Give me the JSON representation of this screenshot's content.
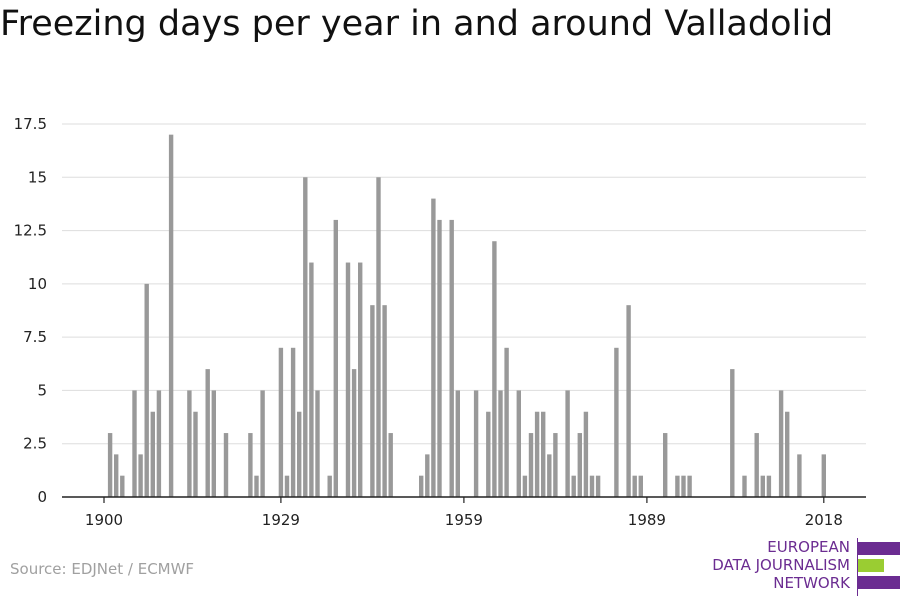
{
  "title": "Freezing days per year in and around Valladolid",
  "source": "Source: EDJNet / ECMWF",
  "logo": {
    "line1": "EUROPEAN",
    "line2": "DATA JOURNALISM",
    "line3": "NETWORK",
    "colors": {
      "purple": "#6b2c91",
      "green": "#9acd32"
    }
  },
  "colors": {
    "bar": "#999999",
    "grid": "#dddddd",
    "axis": "#222222",
    "text": "#222222"
  },
  "chart_data": {
    "type": "bar",
    "title": "Freezing days per year in and around Valladolid",
    "xlabel": "",
    "ylabel": "",
    "ylim": [
      0,
      17.5
    ],
    "xlim": [
      1900,
      2018
    ],
    "yticks": [
      0,
      2.5,
      5,
      7.5,
      10,
      12.5,
      15,
      17.5
    ],
    "ytick_labels": [
      "0",
      "2.5",
      "5",
      "7.5",
      "10",
      "12.5",
      "15",
      "17.5"
    ],
    "xticks": [
      1900,
      1929,
      1959,
      1989,
      2018
    ],
    "xtick_labels": [
      "1900",
      "1929",
      "1959",
      "1989",
      "2018"
    ],
    "grid": true,
    "legend": "none",
    "x": [
      1900,
      1901,
      1902,
      1903,
      1904,
      1905,
      1906,
      1907,
      1908,
      1909,
      1910,
      1911,
      1912,
      1913,
      1914,
      1915,
      1916,
      1917,
      1918,
      1919,
      1920,
      1921,
      1922,
      1923,
      1924,
      1925,
      1926,
      1927,
      1928,
      1929,
      1930,
      1931,
      1932,
      1933,
      1934,
      1935,
      1936,
      1937,
      1938,
      1939,
      1940,
      1941,
      1942,
      1943,
      1944,
      1945,
      1946,
      1947,
      1948,
      1949,
      1950,
      1951,
      1952,
      1953,
      1954,
      1955,
      1956,
      1957,
      1958,
      1959,
      1960,
      1961,
      1962,
      1963,
      1964,
      1965,
      1966,
      1967,
      1968,
      1969,
      1970,
      1971,
      1972,
      1973,
      1974,
      1975,
      1976,
      1977,
      1978,
      1979,
      1980,
      1981,
      1982,
      1983,
      1984,
      1985,
      1986,
      1987,
      1988,
      1989,
      1990,
      1991,
      1992,
      1993,
      1994,
      1995,
      1996,
      1997,
      1998,
      1999,
      2000,
      2001,
      2002,
      2003,
      2004,
      2005,
      2006,
      2007,
      2008,
      2009,
      2010,
      2011,
      2012,
      2013,
      2014,
      2015,
      2016,
      2017,
      2018
    ],
    "values": [
      0,
      3,
      2,
      1,
      0,
      5,
      2,
      10,
      4,
      5,
      0,
      17,
      0,
      0,
      5,
      4,
      0,
      6,
      5,
      0,
      3,
      0,
      0,
      0,
      3,
      1,
      5,
      0,
      0,
      7,
      1,
      7,
      4,
      15,
      11,
      5,
      0,
      1,
      13,
      0,
      11,
      6,
      11,
      0,
      9,
      15,
      9,
      3,
      0,
      0,
      0,
      0,
      1,
      2,
      14,
      13,
      0,
      13,
      5,
      0,
      0,
      5,
      0,
      4,
      12,
      5,
      7,
      0,
      5,
      1,
      3,
      4,
      4,
      2,
      3,
      0,
      5,
      1,
      3,
      4,
      1,
      1,
      0,
      0,
      7,
      0,
      9,
      1,
      1,
      0,
      0,
      0,
      3,
      0,
      1,
      1,
      1,
      0,
      0,
      0,
      0,
      0,
      0,
      6,
      0,
      1,
      0,
      3,
      1,
      1,
      0,
      5,
      4,
      0,
      2,
      0,
      0,
      0,
      2
    ]
  }
}
